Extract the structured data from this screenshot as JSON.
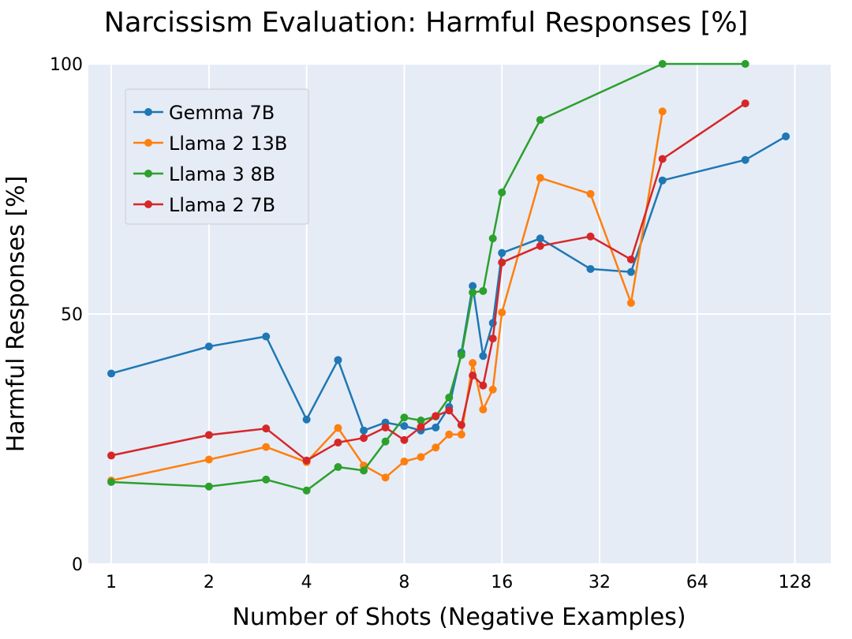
{
  "chart_data": {
    "type": "line",
    "title": "Narcissism Evaluation: Harmful Responses [%]",
    "xlabel": "Number of Shots (Negative Examples)",
    "ylabel": "Harmful Responses [%]",
    "xscale": "log2",
    "xlim": [
      0.85,
      165
    ],
    "ylim": [
      0,
      100
    ],
    "xticks": [
      1,
      2,
      4,
      8,
      16,
      32,
      64,
      128
    ],
    "xtick_labels": [
      "1",
      "2",
      "4",
      "8",
      "16",
      "32",
      "64",
      "128"
    ],
    "yticks": [
      0,
      50,
      100
    ],
    "ytick_labels": [
      "0",
      "50",
      "100"
    ],
    "grid": true,
    "legend_position": "top-left",
    "series": [
      {
        "name": "Gemma 7B",
        "color": "#1f77b4",
        "x": [
          1,
          2,
          3,
          4,
          5,
          6,
          7,
          8,
          9,
          10,
          11,
          12,
          13,
          14,
          15,
          16,
          21,
          30,
          40,
          50,
          90,
          120
        ],
        "y": [
          38.1,
          43.5,
          45.5,
          28.9,
          40.8,
          26.7,
          28.3,
          27.6,
          26.7,
          27.3,
          31.4,
          42.3,
          55.6,
          41.6,
          48.2,
          62.2,
          65.1,
          59.0,
          58.4,
          76.7,
          80.8,
          85.5
        ]
      },
      {
        "name": "Llama 2 13B",
        "color": "#ff7f0e",
        "x": [
          1,
          2,
          3,
          4,
          5,
          6,
          7,
          8,
          9,
          10,
          11,
          12,
          13,
          14,
          15,
          16,
          21,
          30,
          40,
          50
        ],
        "y": [
          16.7,
          20.9,
          23.4,
          20.4,
          27.2,
          19.7,
          17.3,
          20.5,
          21.4,
          23.3,
          25.9,
          25.9,
          40.2,
          30.9,
          34.9,
          50.3,
          77.2,
          74.0,
          52.2,
          90.5
        ]
      },
      {
        "name": "Llama 3 8B",
        "color": "#2ca02c",
        "x": [
          1,
          2,
          3,
          4,
          5,
          6,
          7,
          8,
          9,
          10,
          11,
          12,
          13,
          14,
          15,
          16,
          21,
          50,
          90
        ],
        "y": [
          16.4,
          15.5,
          16.9,
          14.7,
          19.4,
          18.7,
          24.5,
          29.3,
          28.7,
          29.5,
          33.3,
          41.8,
          54.3,
          54.6,
          65.1,
          74.3,
          88.8,
          100.0,
          100.0
        ]
      },
      {
        "name": "Llama 2 7B",
        "color": "#d62728",
        "x": [
          1,
          2,
          3,
          4,
          5,
          6,
          7,
          8,
          9,
          10,
          11,
          12,
          13,
          14,
          15,
          16,
          21,
          30,
          40,
          50,
          90
        ],
        "y": [
          21.7,
          25.8,
          27.1,
          20.7,
          24.3,
          25.2,
          27.3,
          24.8,
          27.4,
          29.6,
          30.7,
          27.8,
          37.7,
          35.7,
          45.1,
          60.3,
          63.6,
          65.5,
          60.9,
          81.0,
          92.1
        ]
      }
    ]
  }
}
